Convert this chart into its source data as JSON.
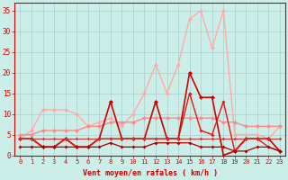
{
  "x": [
    0,
    1,
    2,
    3,
    4,
    5,
    6,
    7,
    8,
    9,
    10,
    11,
    12,
    13,
    14,
    15,
    16,
    17,
    18,
    19,
    20,
    21,
    22,
    23
  ],
  "series": [
    {
      "values": [
        4,
        6,
        11,
        11,
        11,
        10,
        7,
        8,
        9,
        7,
        10,
        15,
        22,
        15,
        22,
        33,
        35,
        26,
        35,
        5,
        5,
        5,
        4,
        7
      ],
      "color": "#ffaaaa",
      "lw": 1.0,
      "marker": "D",
      "ms": 2.5
    },
    {
      "values": [
        5,
        5,
        6,
        6,
        6,
        6,
        7,
        7,
        8,
        8,
        8,
        9,
        9,
        9,
        9,
        9,
        9,
        9,
        8,
        8,
        7,
        7,
        7,
        7
      ],
      "color": "#ff8888",
      "lw": 1.0,
      "marker": "D",
      "ms": 2.5
    },
    {
      "values": [
        4,
        4,
        2,
        2,
        4,
        2,
        2,
        4,
        13,
        4,
        4,
        4,
        13,
        4,
        4,
        20,
        14,
        14,
        0,
        1,
        4,
        4,
        4,
        1
      ],
      "color": "#cc0000",
      "lw": 1.2,
      "marker": "D",
      "ms": 2.5
    },
    {
      "values": [
        4,
        4,
        2,
        2,
        4,
        2,
        2,
        4,
        4,
        4,
        4,
        4,
        4,
        4,
        4,
        15,
        6,
        5,
        13,
        1,
        4,
        4,
        2,
        1
      ],
      "color": "#ee1111",
      "lw": 1.0,
      "marker": "D",
      "ms": 2.0
    },
    {
      "values": [
        2,
        2,
        2,
        2,
        2,
        2,
        2,
        2,
        3,
        2,
        2,
        2,
        3,
        3,
        3,
        3,
        2,
        2,
        2,
        1,
        1,
        2,
        2,
        1
      ],
      "color": "#aa0000",
      "lw": 0.9,
      "marker": "D",
      "ms": 2.0
    },
    {
      "values": [
        4,
        4,
        4,
        4,
        4,
        4,
        4,
        4,
        4,
        4,
        4,
        4,
        4,
        4,
        4,
        4,
        4,
        4,
        4,
        4,
        4,
        4,
        4,
        4
      ],
      "color": "#cc3333",
      "lw": 0.8,
      "marker": "D",
      "ms": 1.8
    }
  ],
  "xlabel": "Vent moyen/en rafales ( km/h )",
  "xlim": [
    -0.5,
    23.5
  ],
  "ylim": [
    0,
    37
  ],
  "yticks": [
    0,
    5,
    10,
    15,
    20,
    25,
    30,
    35
  ],
  "xticks": [
    0,
    1,
    2,
    3,
    4,
    5,
    6,
    7,
    8,
    9,
    10,
    11,
    12,
    13,
    14,
    15,
    16,
    17,
    18,
    19,
    20,
    21,
    22,
    23
  ],
  "bg_color": "#cceee8",
  "grid_color": "#aacccc",
  "tick_color": "#cc0000",
  "label_color": "#cc0000"
}
